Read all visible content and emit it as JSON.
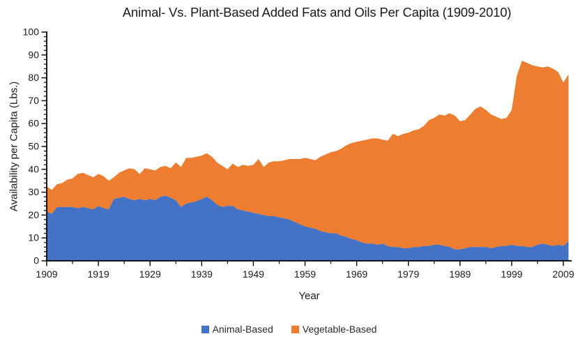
{
  "chart_data": {
    "type": "area",
    "stacked": true,
    "title": "Animal- Vs. Plant-Based Added Fats and Oils Per Capita (1909-2010)",
    "xlabel": "Year",
    "ylabel": "Availability per Capita (Lbs.)",
    "xlim": [
      1909,
      2010
    ],
    "ylim": [
      0,
      100
    ],
    "x_ticks": [
      1909,
      1919,
      1929,
      1939,
      1949,
      1959,
      1969,
      1979,
      1989,
      1999,
      2009
    ],
    "x_minor_tick_step": 5,
    "y_ticks": [
      0,
      10,
      20,
      30,
      40,
      50,
      60,
      70,
      80,
      90,
      100
    ],
    "y_minor_tick_step": 2,
    "grid": false,
    "legend_position": "bottom",
    "axis_color": "#000000",
    "text_color": "#1a1a1a",
    "years": [
      1909,
      1910,
      1911,
      1912,
      1913,
      1914,
      1915,
      1916,
      1917,
      1918,
      1919,
      1920,
      1921,
      1922,
      1923,
      1924,
      1925,
      1926,
      1927,
      1928,
      1929,
      1930,
      1931,
      1932,
      1933,
      1934,
      1935,
      1936,
      1937,
      1938,
      1939,
      1940,
      1941,
      1942,
      1943,
      1944,
      1945,
      1946,
      1947,
      1948,
      1949,
      1950,
      1951,
      1952,
      1953,
      1954,
      1955,
      1956,
      1957,
      1958,
      1959,
      1960,
      1961,
      1962,
      1963,
      1964,
      1965,
      1966,
      1967,
      1968,
      1969,
      1970,
      1971,
      1972,
      1973,
      1974,
      1975,
      1976,
      1977,
      1978,
      1979,
      1980,
      1981,
      1982,
      1983,
      1984,
      1985,
      1986,
      1987,
      1988,
      1989,
      1990,
      1991,
      1992,
      1993,
      1994,
      1995,
      1996,
      1997,
      1998,
      1999,
      2000,
      2001,
      2002,
      2003,
      2004,
      2005,
      2006,
      2007,
      2008,
      2009,
      2010
    ],
    "series": [
      {
        "name": "Animal-Based",
        "color": "#4472C4",
        "values": [
          21.5,
          20.5,
          23.5,
          23.5,
          23.5,
          23.5,
          23,
          23.5,
          23,
          22.5,
          24,
          23,
          22.5,
          27,
          27.5,
          28,
          27,
          26.5,
          27,
          26.5,
          27,
          26.5,
          28,
          28.5,
          27.5,
          26.5,
          23.5,
          25,
          25.5,
          26,
          27,
          28,
          26.5,
          24.5,
          23.5,
          24,
          24,
          22.5,
          22,
          21.5,
          21,
          20.5,
          20,
          19.5,
          19.5,
          19,
          18.5,
          18,
          17,
          16,
          15,
          14.5,
          14,
          13,
          12.5,
          12,
          12,
          11,
          10.5,
          9.5,
          9,
          8,
          7.5,
          7.5,
          7,
          7.5,
          6.5,
          6,
          6,
          5.5,
          5.5,
          6,
          6,
          6.5,
          6.5,
          7,
          7,
          6.5,
          6,
          5,
          5,
          5.5,
          6,
          6,
          6,
          6,
          5.5,
          6,
          6.5,
          6.5,
          7,
          6.5,
          6.5,
          6,
          6,
          7,
          7.5,
          7,
          6.5,
          7,
          6.5,
          8.5
        ]
      },
      {
        "name": "Vegetable-Based",
        "color": "#ED7D31",
        "values": [
          11,
          10.5,
          10,
          10.5,
          12,
          12.5,
          15,
          15,
          14.5,
          14,
          14,
          14,
          12.5,
          9.5,
          11,
          11.5,
          13.5,
          13.5,
          11,
          14,
          13,
          13,
          13,
          13,
          13,
          16.5,
          17.5,
          20,
          19.5,
          19.5,
          19,
          19,
          19,
          18.5,
          18,
          16,
          18.5,
          18.5,
          20,
          20,
          21,
          24,
          21,
          23.5,
          24,
          24.5,
          25.5,
          26.5,
          27.5,
          28.5,
          30,
          30,
          30,
          32.5,
          34,
          35.5,
          36,
          38,
          40,
          42,
          43,
          44.5,
          45.5,
          46,
          46.5,
          45.5,
          46,
          49.5,
          48.5,
          50,
          50.5,
          51,
          51.5,
          52.5,
          55,
          55.5,
          57,
          57,
          58.5,
          58.5,
          56,
          56,
          58,
          60.5,
          61.5,
          60,
          58.5,
          57,
          55.5,
          56,
          59,
          74.5,
          81,
          80.5,
          79.5,
          78,
          77,
          78,
          77.5,
          75.5,
          71.5,
          73
        ]
      }
    ]
  }
}
